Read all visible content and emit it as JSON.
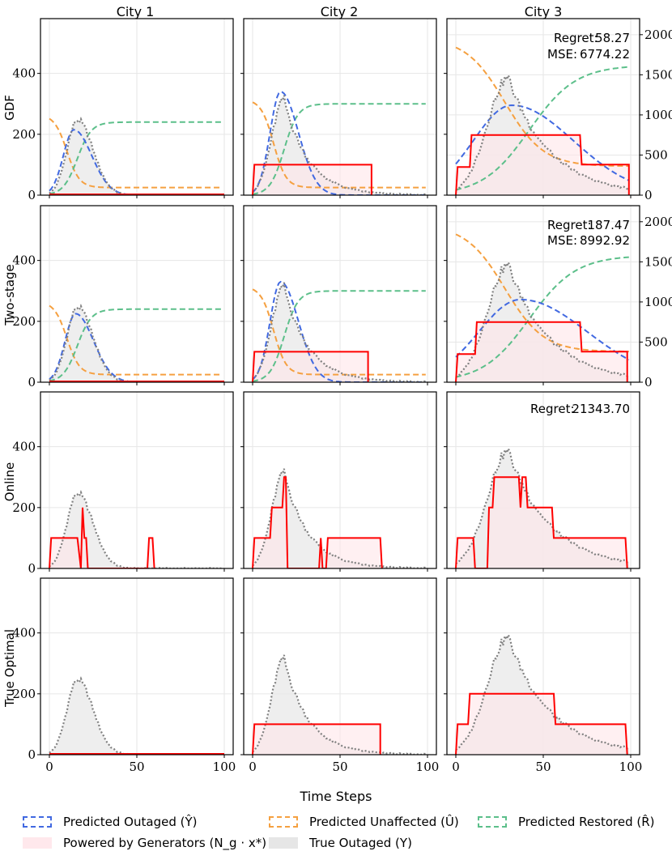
{
  "figure": {
    "column_titles": [
      "City 1",
      "City 2",
      "City 3"
    ],
    "row_titles": [
      "GDF",
      "Two-stage",
      "Online",
      "True Optimal"
    ],
    "xlabel": "Time Steps"
  },
  "legend": {
    "items": [
      {
        "label": "Predicted Outaged (Ŷ)",
        "style": "dashed",
        "color": "#4169e1"
      },
      {
        "label": "Predicted Unaffected (Û)",
        "style": "dashed",
        "color": "#f5a040"
      },
      {
        "label": "Predicted Restored (R̂)",
        "style": "dashed",
        "color": "#5cbf8a"
      },
      {
        "label": "Powered by Generators (N_g · x*)",
        "style": "fill",
        "color": "#ffe8ec"
      },
      {
        "label": "True Outaged (Y)",
        "style": "fill",
        "color": "#e6e6e6"
      }
    ]
  },
  "chart_data": {
    "type": "line",
    "x_range": [
      0,
      100
    ],
    "x_ticks": [
      0,
      50,
      100
    ],
    "y_ranges": {
      "city_1": [
        0,
        580
      ],
      "city_2": [
        0,
        580
      ],
      "city_3_right_axis": [
        0,
        2200
      ]
    },
    "y_ticks": {
      "left": [
        0,
        200,
        400
      ],
      "right": [
        0,
        500,
        1000,
        1500,
        2000
      ]
    },
    "colors": {
      "outaged": "#4169e1",
      "unaffected": "#f5a040",
      "restored": "#5cbf8a",
      "generators": "#ff0000",
      "gen_fill": "#ffe6ea",
      "true_fill": "#e8e8e8",
      "true_line": "#808080"
    },
    "true_outaged_peaks": [
      {
        "city": "City 1",
        "peak_t": 16,
        "peak": 245
      },
      {
        "city": "City 2",
        "peak_t": 18,
        "peak": 315
      },
      {
        "city": "City 3",
        "peak_t": 30,
        "peak": 385
      }
    ],
    "generator_steps": {
      "GDF": [
        [],
        [
          [
            0,
            0
          ],
          [
            1,
            100
          ],
          [
            68,
            100
          ],
          [
            68,
            0
          ]
        ],
        [
          [
            0,
            0
          ],
          [
            1,
            350
          ],
          [
            8,
            350
          ],
          [
            9,
            750
          ],
          [
            71,
            750
          ],
          [
            72,
            380
          ],
          [
            99,
            380
          ],
          [
            99,
            0
          ]
        ]
      ],
      "Two-stage": [
        [],
        [
          [
            0,
            0
          ],
          [
            1,
            100
          ],
          [
            66,
            100
          ],
          [
            66,
            0
          ]
        ],
        [
          [
            0,
            0
          ],
          [
            1,
            350
          ],
          [
            11,
            350
          ],
          [
            12,
            750
          ],
          [
            71,
            750
          ],
          [
            72,
            380
          ],
          [
            98,
            380
          ],
          [
            98,
            0
          ]
        ]
      ],
      "Online": [
        [
          [
            0,
            0
          ],
          [
            1,
            100
          ],
          [
            16,
            100
          ],
          [
            18,
            0
          ],
          [
            19,
            200
          ],
          [
            20,
            100
          ],
          [
            21,
            100
          ],
          [
            22,
            0
          ],
          [
            56,
            0
          ],
          [
            57,
            100
          ],
          [
            59,
            100
          ],
          [
            60,
            0
          ]
        ],
        [
          [
            0,
            0
          ],
          [
            1,
            100
          ],
          [
            10,
            100
          ],
          [
            11,
            200
          ],
          [
            17,
            200
          ],
          [
            18,
            300
          ],
          [
            19,
            300
          ],
          [
            20,
            0
          ],
          [
            38,
            0
          ],
          [
            39,
            100
          ],
          [
            40,
            0
          ],
          [
            42,
            0
          ],
          [
            43,
            100
          ],
          [
            73,
            100
          ],
          [
            74,
            0
          ]
        ],
        [
          [
            0,
            0
          ],
          [
            1,
            100
          ],
          [
            10,
            100
          ],
          [
            11,
            0
          ],
          [
            18,
            0
          ],
          [
            19,
            200
          ],
          [
            21,
            200
          ],
          [
            22,
            300
          ],
          [
            36,
            300
          ],
          [
            37,
            200
          ],
          [
            38,
            300
          ],
          [
            40,
            300
          ],
          [
            41,
            200
          ],
          [
            55,
            200
          ],
          [
            56,
            100
          ],
          [
            97,
            100
          ],
          [
            98,
            0
          ]
        ]
      ],
      "True Optimal": [
        [],
        [
          [
            0,
            0
          ],
          [
            1,
            100
          ],
          [
            73,
            100
          ],
          [
            73,
            0
          ]
        ],
        [
          [
            0,
            0
          ],
          [
            1,
            100
          ],
          [
            7,
            100
          ],
          [
            8,
            200
          ],
          [
            56,
            200
          ],
          [
            57,
            100
          ],
          [
            97,
            100
          ],
          [
            98,
            0
          ]
        ]
      ]
    },
    "predictions": {
      "GDF": [
        {
          "outaged_peak": 215,
          "outaged_center": 14,
          "outaged_width": 6,
          "unaffected_start": 265,
          "unaffected_end": 25,
          "restored_end": 240
        },
        {
          "outaged_peak": 340,
          "outaged_center": 16,
          "outaged_width": 6,
          "unaffected_start": 315,
          "unaffected_end": 25,
          "restored_end": 300
        },
        {
          "outaged_peak": 1120,
          "outaged_center": 32,
          "outaged_width": 22,
          "unaffected_start": 1960,
          "unaffected_end": 360,
          "restored_end": 1620
        }
      ],
      "Two-stage": [
        {
          "outaged_peak": 225,
          "outaged_center": 15,
          "outaged_width": 6,
          "unaffected_start": 265,
          "unaffected_end": 25,
          "restored_end": 240
        },
        {
          "outaged_peak": 330,
          "outaged_center": 16,
          "outaged_width": 6,
          "unaffected_start": 315,
          "unaffected_end": 25,
          "restored_end": 300
        },
        {
          "outaged_peak": 1030,
          "outaged_center": 37,
          "outaged_width": 24,
          "unaffected_start": 1960,
          "unaffected_end": 380,
          "restored_end": 1580
        }
      ]
    },
    "annotations": [
      {
        "row": "GDF",
        "city": "City 3",
        "regret_label": "Regret:",
        "regret": "58.27",
        "mse_label": "MSE:",
        "mse": "6774.22"
      },
      {
        "row": "Two-stage",
        "city": "City 3",
        "regret_label": "Regret:",
        "regret": "187.47",
        "mse_label": "MSE:",
        "mse": "8992.92"
      },
      {
        "row": "Online",
        "city": "City 3",
        "regret_label": "Regret:",
        "regret": "21343.70"
      }
    ]
  }
}
